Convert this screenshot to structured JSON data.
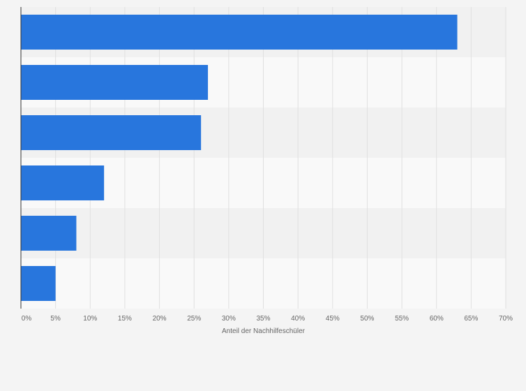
{
  "chart_data": {
    "type": "bar",
    "orientation": "horizontal",
    "title": "",
    "xlabel": "Anteil der Nachhilfeschüler",
    "ylabel": "",
    "categories": [
      "",
      "",
      "",
      "",
      "",
      ""
    ],
    "values": [
      63,
      27,
      26,
      12,
      8,
      5
    ],
    "xlim": [
      0,
      70
    ],
    "x_ticks": [
      "0%",
      "5%",
      "10%",
      "15%",
      "20%",
      "25%",
      "30%",
      "35%",
      "40%",
      "45%",
      "50%",
      "55%",
      "60%",
      "65%",
      "70%"
    ],
    "grid": true,
    "legend": "none",
    "colors": {
      "bar": "#2876dd",
      "background": "#f4f4f4",
      "band_light": "#f9f9f9",
      "band_dark": "#f1f1f1",
      "grid": "#e0e0e0",
      "axis": "#333333"
    }
  }
}
